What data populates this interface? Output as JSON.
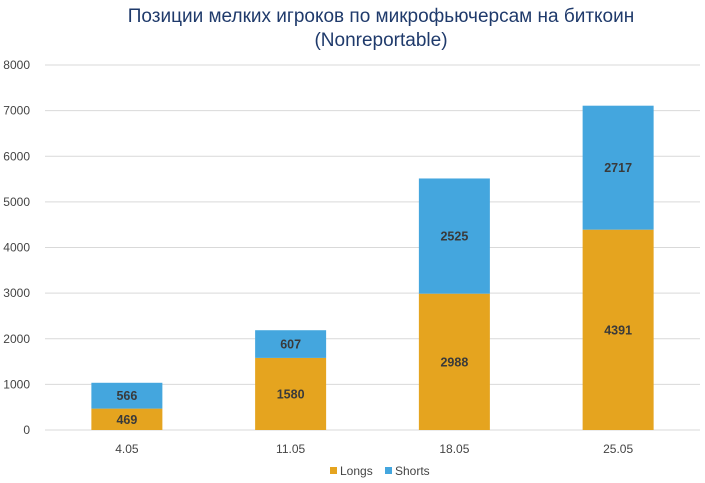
{
  "chart_data": {
    "type": "bar",
    "stacked": true,
    "title": "Позиции мелких игроков по микрофьючерсам на биткоин",
    "subtitle": "(Nonreportable)",
    "xlabel": "",
    "ylabel": "",
    "categories": [
      "4.05",
      "11.05",
      "18.05",
      "25.05"
    ],
    "series": [
      {
        "name": "Longs",
        "values": [
          469,
          1580,
          2988,
          4391
        ],
        "color": "#e5a41f"
      },
      {
        "name": "Shorts",
        "values": [
          566,
          607,
          2525,
          2717
        ],
        "color": "#44a6de"
      }
    ],
    "ylim": [
      0,
      8000
    ],
    "yticks": [
      "0",
      "1000",
      "2000",
      "3000",
      "4000",
      "5000",
      "6000",
      "7000",
      "8000"
    ],
    "grid": true,
    "legend_position": "bottom"
  }
}
